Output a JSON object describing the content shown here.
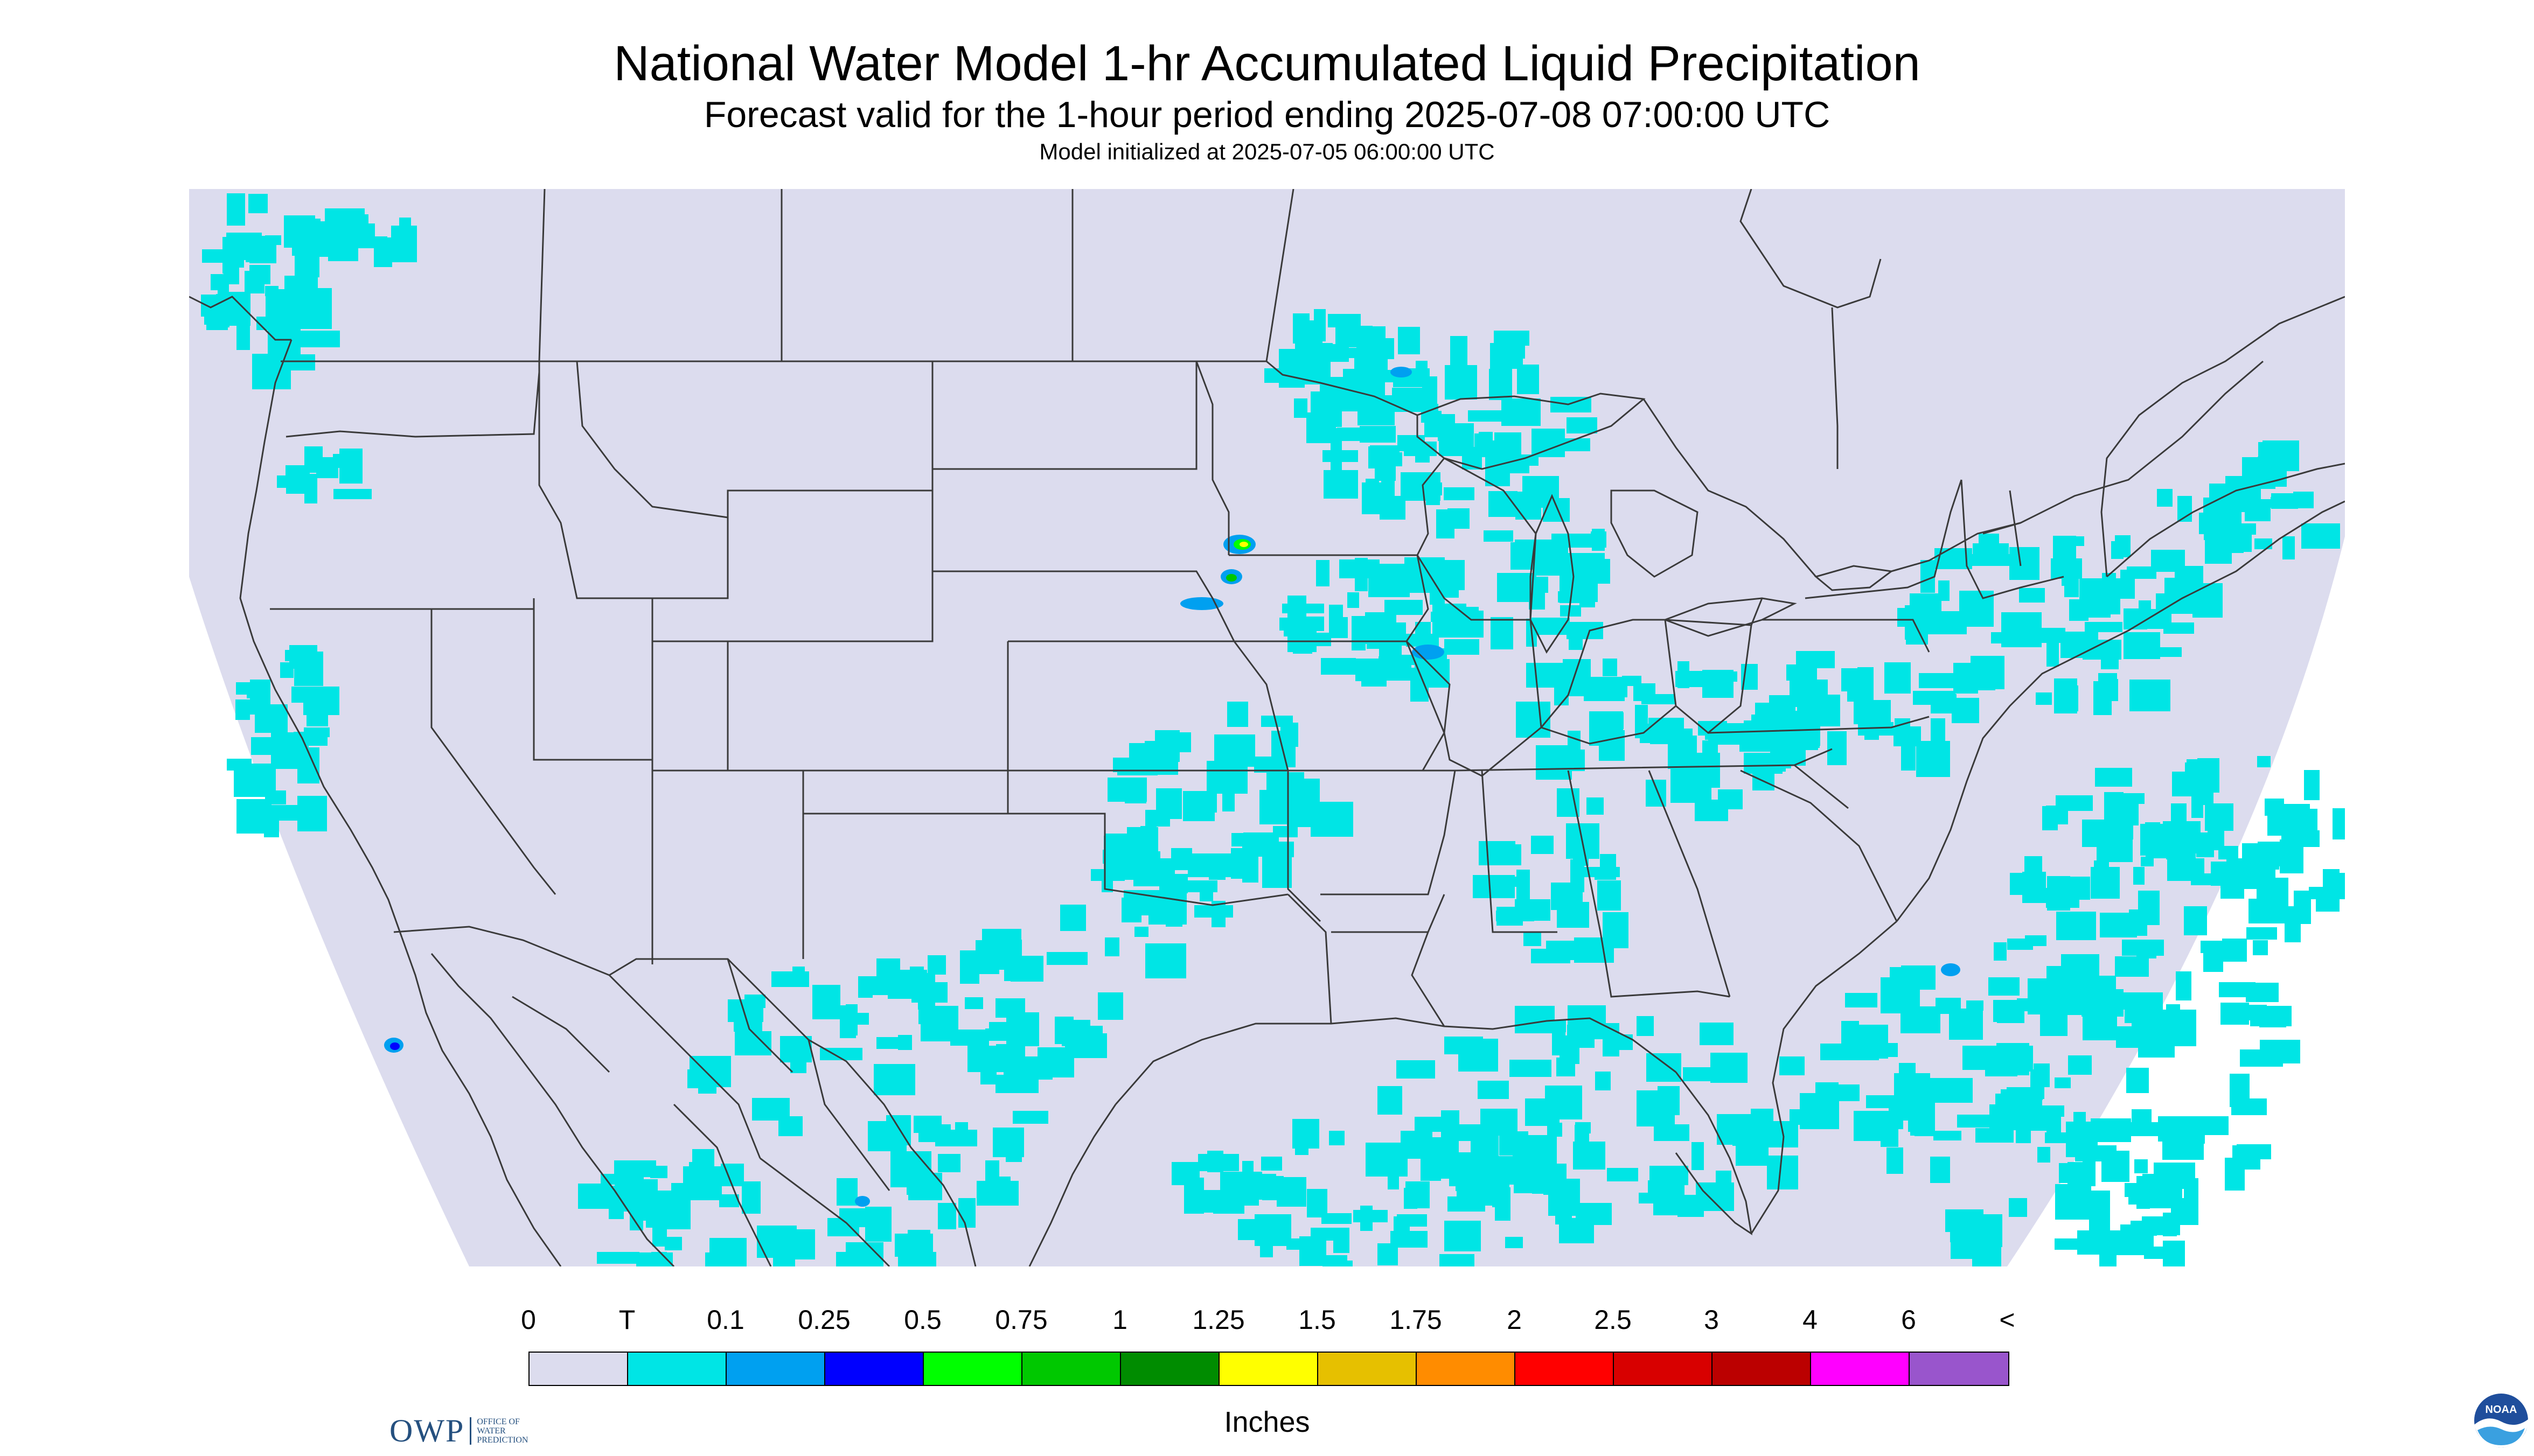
{
  "header": {
    "title": "National Water Model 1-hr Accumulated Liquid Precipitation",
    "subtitle": "Forecast valid for the 1-hour period ending 2025-07-08 07:00:00 UTC",
    "init": "Model initialized at 2025-07-05 06:00:00 UTC"
  },
  "logos": {
    "owp_letters": "OWP",
    "owp_line1": "OFFICE OF",
    "owp_line2": "WATER",
    "owp_line3": "PREDICTION",
    "noaa": "NOAA"
  },
  "colors": {
    "no_data": "#ffffff",
    "zero": "#dcdcee",
    "map_lines": "#3a3a3a"
  },
  "legend": {
    "labels": [
      "0",
      "T",
      "0.1",
      "0.25",
      "0.5",
      "0.75",
      "1",
      "1.25",
      "1.5",
      "1.75",
      "2",
      "2.5",
      "3",
      "4",
      "6",
      "<"
    ],
    "colors": [
      "#dcdcee",
      "#00e5e5",
      "#00a0f0",
      "#0000ff",
      "#00ff00",
      "#00c800",
      "#008c00",
      "#ffff00",
      "#e6c000",
      "#ff8c00",
      "#ff0000",
      "#d80000",
      "#bb0000",
      "#ff00ff",
      "#9955cc"
    ],
    "units": "Inches"
  }
}
